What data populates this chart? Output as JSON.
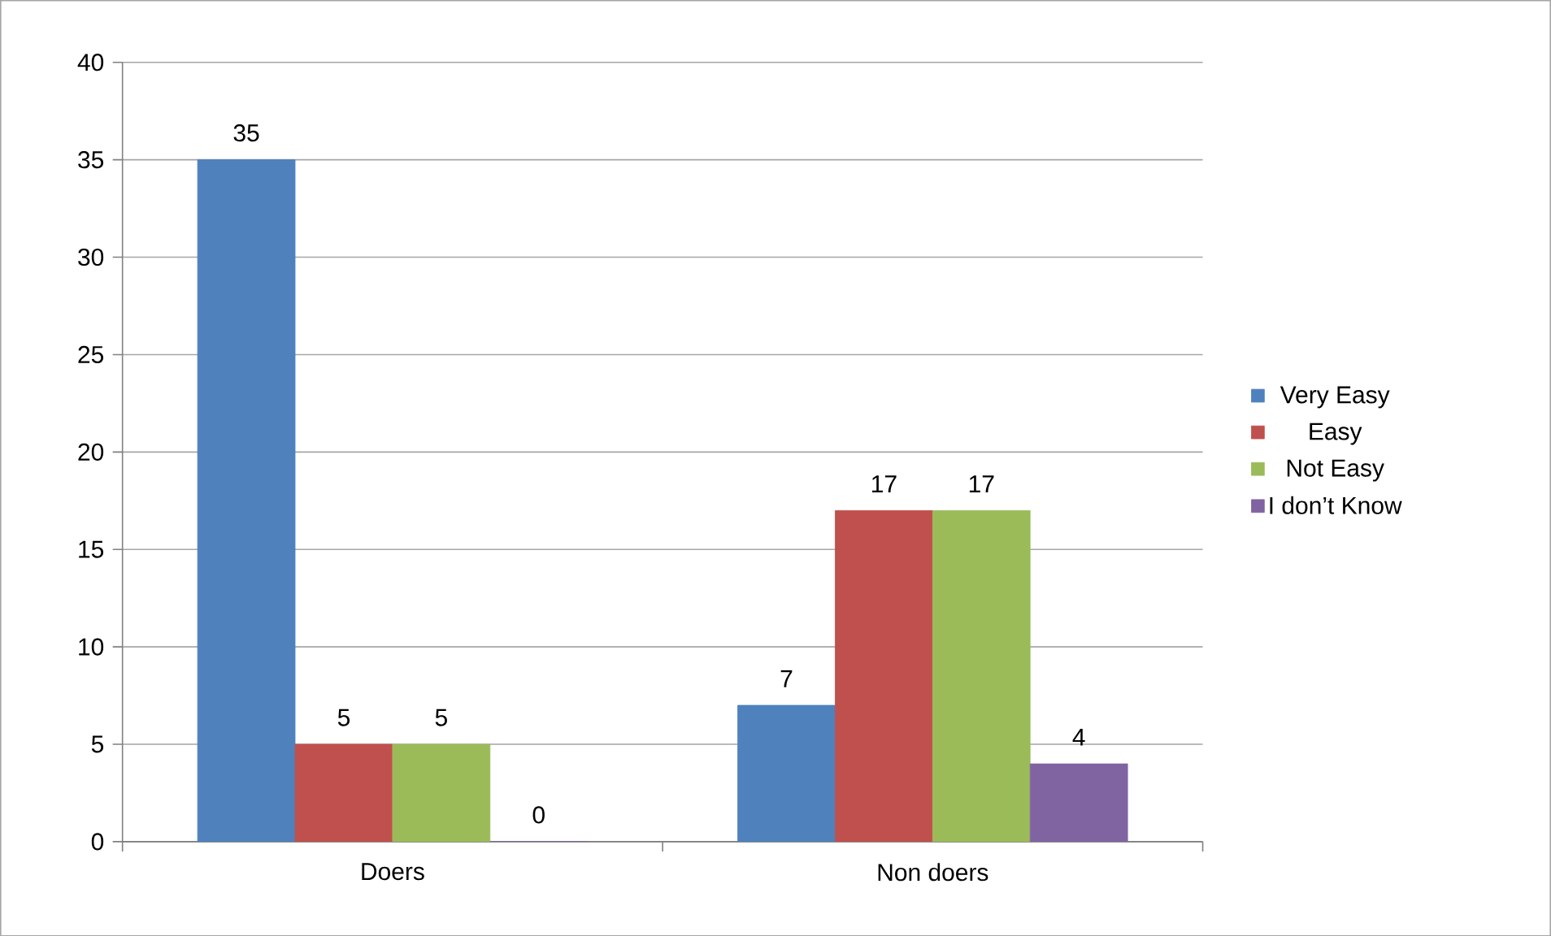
{
  "chart_data": {
    "type": "bar",
    "categories": [
      "Doers",
      "Non doers"
    ],
    "series": [
      {
        "name": "Very Easy",
        "color": "#4f81bd",
        "values": [
          35,
          7
        ]
      },
      {
        "name": "Easy",
        "color": "#c0504d",
        "values": [
          5,
          17
        ]
      },
      {
        "name": "Not Easy",
        "color": "#9bbb59",
        "values": [
          5,
          17
        ]
      },
      {
        "name": "I don’t Know",
        "color": "#8064a2",
        "values": [
          0,
          4
        ]
      }
    ],
    "ylim": [
      0,
      40
    ],
    "yticks": [
      0,
      5,
      10,
      15,
      20,
      25,
      30,
      35,
      40
    ],
    "grid": "y",
    "legend": "right",
    "data_labels": true
  }
}
